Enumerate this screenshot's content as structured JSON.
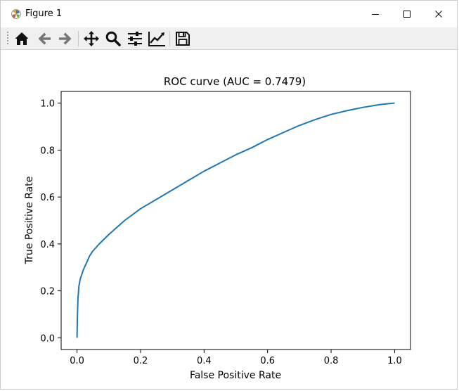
{
  "window": {
    "title": "Figure 1",
    "app_icon": "matplotlib-icon",
    "controls": [
      "minimize-icon",
      "maximize-icon",
      "close-icon"
    ]
  },
  "toolbar": {
    "tools": [
      {
        "name": "home-button",
        "icon": "home-icon"
      },
      {
        "name": "back-button",
        "icon": "arrow-left-icon"
      },
      {
        "name": "forward-button",
        "icon": "arrow-right-icon"
      },
      {
        "name": "pan-button",
        "icon": "move-icon"
      },
      {
        "name": "zoom-button",
        "icon": "magnifier-icon"
      },
      {
        "name": "configure-subplots-button",
        "icon": "sliders-icon"
      },
      {
        "name": "edit-axis-button",
        "icon": "line-chart-icon"
      },
      {
        "name": "save-button",
        "icon": "floppy-disk-icon"
      }
    ]
  },
  "chart_data": {
    "type": "line",
    "title": "ROC curve (AUC = 0.7479)",
    "xlabel": "False Positive Rate",
    "ylabel": "True Positive Rate",
    "xlim": [
      -0.05,
      1.05
    ],
    "ylim": [
      -0.05,
      1.05
    ],
    "xticks": [
      0.0,
      0.2,
      0.4,
      0.6,
      0.8,
      1.0
    ],
    "xtick_labels": [
      "0.0",
      "0.2",
      "0.4",
      "0.6",
      "0.8",
      "1.0"
    ],
    "yticks": [
      0.0,
      0.2,
      0.4,
      0.6,
      0.8,
      1.0
    ],
    "ytick_labels": [
      "0.0",
      "0.2",
      "0.4",
      "0.6",
      "0.8",
      "1.0"
    ],
    "grid": false,
    "line_color": "#1f77b4",
    "series": [
      {
        "x": [
          0.0,
          0.001,
          0.003,
          0.006,
          0.01,
          0.015,
          0.02,
          0.03,
          0.04,
          0.05,
          0.07,
          0.1,
          0.15,
          0.2,
          0.25,
          0.3,
          0.35,
          0.4,
          0.45,
          0.5,
          0.55,
          0.6,
          0.65,
          0.7,
          0.75,
          0.8,
          0.85,
          0.9,
          0.95,
          0.98,
          1.0
        ],
        "y": [
          0.0,
          0.08,
          0.17,
          0.22,
          0.25,
          0.27,
          0.29,
          0.32,
          0.35,
          0.37,
          0.4,
          0.44,
          0.5,
          0.55,
          0.59,
          0.63,
          0.67,
          0.71,
          0.745,
          0.78,
          0.81,
          0.845,
          0.875,
          0.905,
          0.93,
          0.952,
          0.968,
          0.982,
          0.993,
          0.998,
          1.0
        ]
      }
    ]
  }
}
